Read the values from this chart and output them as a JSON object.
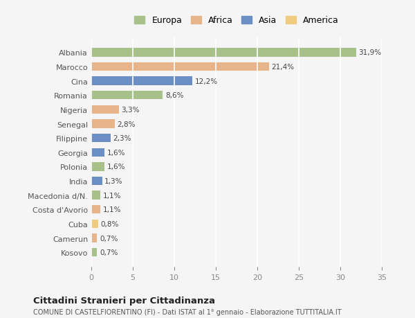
{
  "categories": [
    "Albania",
    "Marocco",
    "Cina",
    "Romania",
    "Nigeria",
    "Senegal",
    "Filippine",
    "Georgia",
    "Polonia",
    "India",
    "Macedonia d/N.",
    "Costa d'Avorio",
    "Cuba",
    "Camerun",
    "Kosovo"
  ],
  "values": [
    31.9,
    21.4,
    12.2,
    8.6,
    3.3,
    2.8,
    2.3,
    1.6,
    1.6,
    1.3,
    1.1,
    1.1,
    0.8,
    0.7,
    0.7
  ],
  "labels": [
    "31,9%",
    "21,4%",
    "12,2%",
    "8,6%",
    "3,3%",
    "2,8%",
    "2,3%",
    "1,6%",
    "1,6%",
    "1,3%",
    "1,1%",
    "1,1%",
    "0,8%",
    "0,7%",
    "0,7%"
  ],
  "continent": [
    "Europa",
    "Africa",
    "Asia",
    "Europa",
    "Africa",
    "Africa",
    "Asia",
    "Asia",
    "Europa",
    "Asia",
    "Europa",
    "Africa",
    "America",
    "Africa",
    "Europa"
  ],
  "colors": {
    "Europa": "#a8c08a",
    "Africa": "#e8b48a",
    "Asia": "#6b8fc4",
    "America": "#f0cc80"
  },
  "legend_order": [
    "Europa",
    "Africa",
    "Asia",
    "America"
  ],
  "title": "Cittadini Stranieri per Cittadinanza",
  "subtitle": "COMUNE DI CASTELFIORENTINO (FI) - Dati ISTAT al 1° gennaio - Elaborazione TUTTITALIA.IT",
  "xlim": [
    0,
    35
  ],
  "xticks": [
    0,
    5,
    10,
    15,
    20,
    25,
    30,
    35
  ],
  "bg_color": "#f5f5f5",
  "grid_color": "#ffffff",
  "bar_height": 0.6
}
